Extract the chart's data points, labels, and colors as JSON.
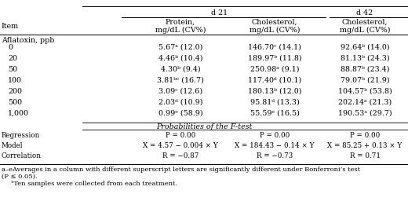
{
  "col_headers": {
    "d21": "d 21",
    "d42": "d 42"
  },
  "sub_headers": {
    "col1": "Protein,\nmg/dL (CV%)",
    "col2": "Cholesterol,\nmg/dL (CV%)",
    "col3": "Cholesterol,\nmg/dL (CV%)"
  },
  "item_label": "Item",
  "section_label": "Aflatoxin, ppb",
  "aflatoxin_levels": [
    "0",
    "20",
    "50",
    "100",
    "200",
    "500",
    "1,000"
  ],
  "col1_data": [
    "5.67ᵃ (12.0)",
    "4.46ᵇ (10.4)",
    "4.30ᵇ (9.4)",
    "3.81ᵇᶜ (16.7)",
    "3.09ᶜ (12.6)",
    "2.03ᵈ (10.9)",
    "0.99ᵉ (58.9)"
  ],
  "col2_data": [
    "146.70ᶜ (14.1)",
    "189.97ᵇ (11.8)",
    "250.98ᵃ (9.1)",
    "117.40ᵈ (10.1)",
    "180.13ᵇ (12.0)",
    "95.81ᵈ (13.3)",
    "55.59ᵉ (16.5)"
  ],
  "col3_data": [
    "92.64ᵇ (14.0)",
    "81.13ᵇ (24.3)",
    "88.87ᵇ (23.4)",
    "79.07ᵇ (21.9)",
    "104.57ᵇ (53.8)",
    "202.14ᵃ (21.3)",
    "190.53ᵃ (29.7)"
  ],
  "prob_label": "Probabilities of the F-test",
  "regression_rows": [
    [
      "Regression",
      "P = 0.00",
      "P = 0.00",
      "P = 0.00"
    ],
    [
      "Model",
      "X = 4.57 − 0.004 × Y",
      "X = 184.43 − 0.14 × Y",
      "X = 85.25 + 0.13 × Y"
    ],
    [
      "Correlation",
      "R = −0.87",
      "R = −0.73",
      "R = 0.71"
    ]
  ],
  "footnote1": "a–eAverages in a column with different superscript letters are significantly different under Bonferroni’s test",
  "footnote1b": "(P ≤ 0.05).",
  "footnote2": "¹Ten samples were collected from each treatment.",
  "bg_color": "#ffffff",
  "text_color": "#000000",
  "font_size": 6.8,
  "small_font_size": 6.3,
  "footnote_font_size": 6.0
}
